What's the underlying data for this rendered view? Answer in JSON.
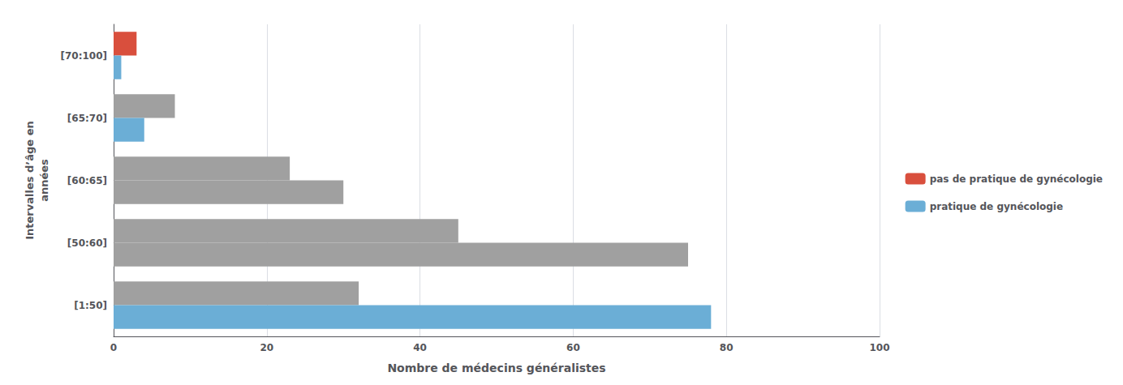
{
  "chart_data": {
    "type": "bar",
    "orientation": "horizontal",
    "categories": [
      "[1:50]",
      "[50:60]",
      "[60:65]",
      "[65:70]",
      "[70:100]"
    ],
    "series": [
      {
        "name": "pas de pratique de gynécologie",
        "color": "#d94f3d",
        "values": [
          32,
          45,
          23,
          8,
          3
        ],
        "colors": [
          "#a0a0a0",
          "#a0a0a0",
          "#a0a0a0",
          "#a0a0a0",
          "#d94f3d"
        ]
      },
      {
        "name": "pratique de gynécologie",
        "color": "#6baed6",
        "values": [
          78,
          75,
          30,
          4,
          1
        ],
        "colors": [
          "#6baed6",
          "#a0a0a0",
          "#a0a0a0",
          "#6baed6",
          "#6baed6"
        ]
      }
    ],
    "xlabel": "Nombre de médecins généralistes",
    "ylabel": "Intervalles d’âge en\nannées",
    "xlim": [
      0,
      100
    ],
    "xticks": [
      0,
      20,
      40,
      60,
      80,
      100
    ],
    "grid": true,
    "legend": "right"
  }
}
